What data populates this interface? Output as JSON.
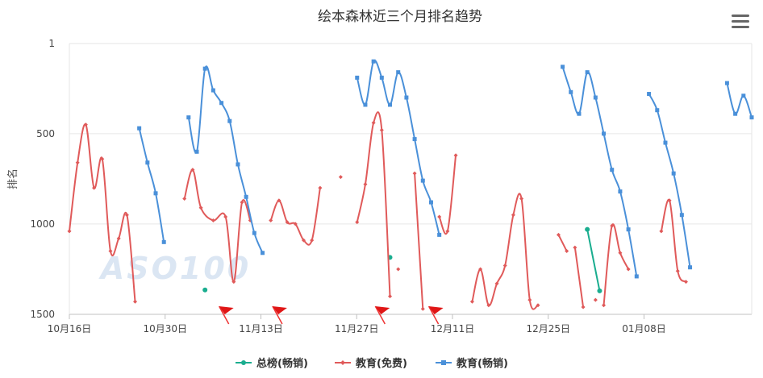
{
  "chart_data": {
    "type": "line",
    "title": "绘本森林近三个月排名趋势",
    "ylabel": "排名",
    "xlabel": "",
    "y_reversed": true,
    "ylim": [
      1,
      1500
    ],
    "y_ticks": [
      "1",
      "500",
      "1000",
      "1500"
    ],
    "x_ticks": [
      "10月16日",
      "10月30日",
      "11月13日",
      "11月27日",
      "12月11日",
      "12月25日",
      "01月08日"
    ],
    "watermark": "ASO100",
    "grid": true,
    "legend_position": "bottom",
    "series": [
      {
        "name": "总榜(畅销)",
        "color": "#1aad8f",
        "segments": [
          [
            [
              3.3,
              1365
            ]
          ],
          [
            [
              7.8,
              1185
            ]
          ],
          [
            [
              12.6,
              1030
            ],
            [
              12.9,
              1370
            ]
          ]
        ]
      },
      {
        "name": "教育(免费)",
        "color": "#e05a5a",
        "segments": [
          [
            [
              0,
              1040
            ],
            [
              0.2,
              660
            ],
            [
              0.4,
              450
            ],
            [
              0.6,
              800
            ],
            [
              0.8,
              640
            ],
            [
              1.0,
              1150
            ],
            [
              1.2,
              1080
            ],
            [
              1.4,
              950
            ],
            [
              1.6,
              1430
            ]
          ],
          [
            [
              2.8,
              860
            ],
            [
              3.0,
              700
            ],
            [
              3.2,
              910
            ],
            [
              3.5,
              980
            ],
            [
              3.8,
              960
            ],
            [
              4.0,
              1320
            ],
            [
              4.2,
              880
            ],
            [
              4.4,
              980
            ]
          ],
          [
            [
              4.9,
              980
            ],
            [
              5.1,
              870
            ],
            [
              5.3,
              990
            ],
            [
              5.5,
              1000
            ],
            [
              5.7,
              1090
            ],
            [
              5.9,
              1090
            ],
            [
              6.1,
              800
            ]
          ],
          [
            [
              6.6,
              740
            ]
          ],
          [
            [
              7.0,
              990
            ],
            [
              7.2,
              780
            ],
            [
              7.4,
              440
            ],
            [
              7.6,
              480
            ],
            [
              7.8,
              1400
            ]
          ],
          [
            [
              8.0,
              1250
            ]
          ],
          [
            [
              8.4,
              720
            ],
            [
              8.6,
              1470
            ]
          ],
          [
            [
              9.0,
              960
            ],
            [
              9.2,
              1040
            ],
            [
              9.4,
              620
            ]
          ],
          [
            [
              9.8,
              1430
            ],
            [
              10.0,
              1250
            ],
            [
              10.2,
              1450
            ],
            [
              10.4,
              1330
            ],
            [
              10.6,
              1230
            ],
            [
              10.8,
              950
            ],
            [
              11.0,
              860
            ],
            [
              11.2,
              1420
            ],
            [
              11.4,
              1450
            ]
          ],
          [
            [
              11.9,
              1060
            ],
            [
              12.1,
              1150
            ]
          ],
          [
            [
              12.3,
              1130
            ],
            [
              12.5,
              1460
            ]
          ],
          [
            [
              12.8,
              1420
            ]
          ],
          [
            [
              13.0,
              1450
            ],
            [
              13.2,
              1010
            ],
            [
              13.4,
              1160
            ],
            [
              13.6,
              1250
            ]
          ],
          [
            [
              14.4,
              1040
            ],
            [
              14.6,
              870
            ],
            [
              14.8,
              1260
            ],
            [
              15.0,
              1320
            ]
          ]
        ]
      },
      {
        "name": "教育(畅销)",
        "color": "#4a90d9",
        "segments": [
          [
            [
              1.7,
              470
            ],
            [
              1.9,
              660
            ],
            [
              2.1,
              830
            ],
            [
              2.3,
              1100
            ]
          ],
          [
            [
              2.9,
              410
            ],
            [
              3.1,
              600
            ],
            [
              3.3,
              140
            ],
            [
              3.5,
              260
            ],
            [
              3.7,
              330
            ],
            [
              3.9,
              430
            ],
            [
              4.1,
              670
            ],
            [
              4.3,
              850
            ],
            [
              4.5,
              1050
            ],
            [
              4.7,
              1160
            ]
          ],
          [
            [
              7.0,
              190
            ],
            [
              7.2,
              340
            ],
            [
              7.4,
              100
            ],
            [
              7.6,
              190
            ],
            [
              7.8,
              340
            ],
            [
              8.0,
              160
            ],
            [
              8.2,
              300
            ],
            [
              8.4,
              530
            ],
            [
              8.6,
              760
            ],
            [
              8.8,
              880
            ],
            [
              9.0,
              1060
            ]
          ],
          [
            [
              12.0,
              130
            ],
            [
              12.2,
              270
            ],
            [
              12.4,
              390
            ],
            [
              12.6,
              160
            ],
            [
              12.8,
              300
            ],
            [
              13.0,
              500
            ],
            [
              13.2,
              700
            ],
            [
              13.4,
              820
            ],
            [
              13.6,
              1030
            ],
            [
              13.8,
              1290
            ]
          ],
          [
            [
              14.1,
              280
            ],
            [
              14.3,
              370
            ],
            [
              14.5,
              550
            ],
            [
              14.7,
              720
            ],
            [
              14.9,
              950
            ],
            [
              15.1,
              1240
            ]
          ],
          [
            [
              16.0,
              220
            ],
            [
              16.2,
              390
            ],
            [
              16.4,
              290
            ],
            [
              16.6,
              410
            ]
          ]
        ]
      }
    ]
  },
  "ui": {
    "menu_icon": "hamburger-menu-icon",
    "flag_icon": "red-flag-icon",
    "flags_x": [
      3.8,
      5.1,
      7.6,
      8.9
    ]
  }
}
